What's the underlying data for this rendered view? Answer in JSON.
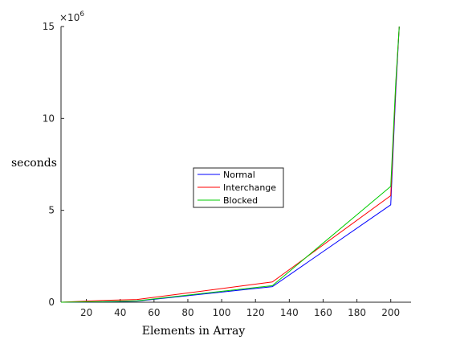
{
  "chart_data": {
    "type": "line",
    "title": "",
    "xlabel": "Elements in Array",
    "ylabel": "seconds",
    "y_multiplier_base": "×10",
    "y_multiplier_exp": "6",
    "xlim": [
      5,
      212
    ],
    "ylim": [
      0,
      15000000
    ],
    "xticks": [
      20,
      40,
      60,
      80,
      100,
      120,
      140,
      160,
      180,
      200
    ],
    "yticks": [
      0,
      5000000,
      10000000,
      15000000
    ],
    "ytick_labels": [
      "0",
      "5",
      "10",
      "15"
    ],
    "legend_position": "center",
    "grid": false,
    "series": [
      {
        "name": "Normal",
        "color": "#0000ff",
        "x": [
          5,
          30,
          50,
          130,
          200,
          203,
          205
        ],
        "y": [
          0,
          20000,
          60000,
          850000,
          5300000,
          11500000,
          15000000
        ]
      },
      {
        "name": "Interchange",
        "color": "#ff0000",
        "x": [
          5,
          30,
          50,
          130,
          200,
          203,
          205
        ],
        "y": [
          0,
          100000,
          150000,
          1100000,
          5800000,
          11800000,
          15000000
        ]
      },
      {
        "name": "Blocked",
        "color": "#00cc00",
        "x": [
          5,
          30,
          50,
          130,
          200,
          203,
          205
        ],
        "y": [
          0,
          30000,
          80000,
          900000,
          6300000,
          12000000,
          15000000
        ]
      }
    ]
  }
}
